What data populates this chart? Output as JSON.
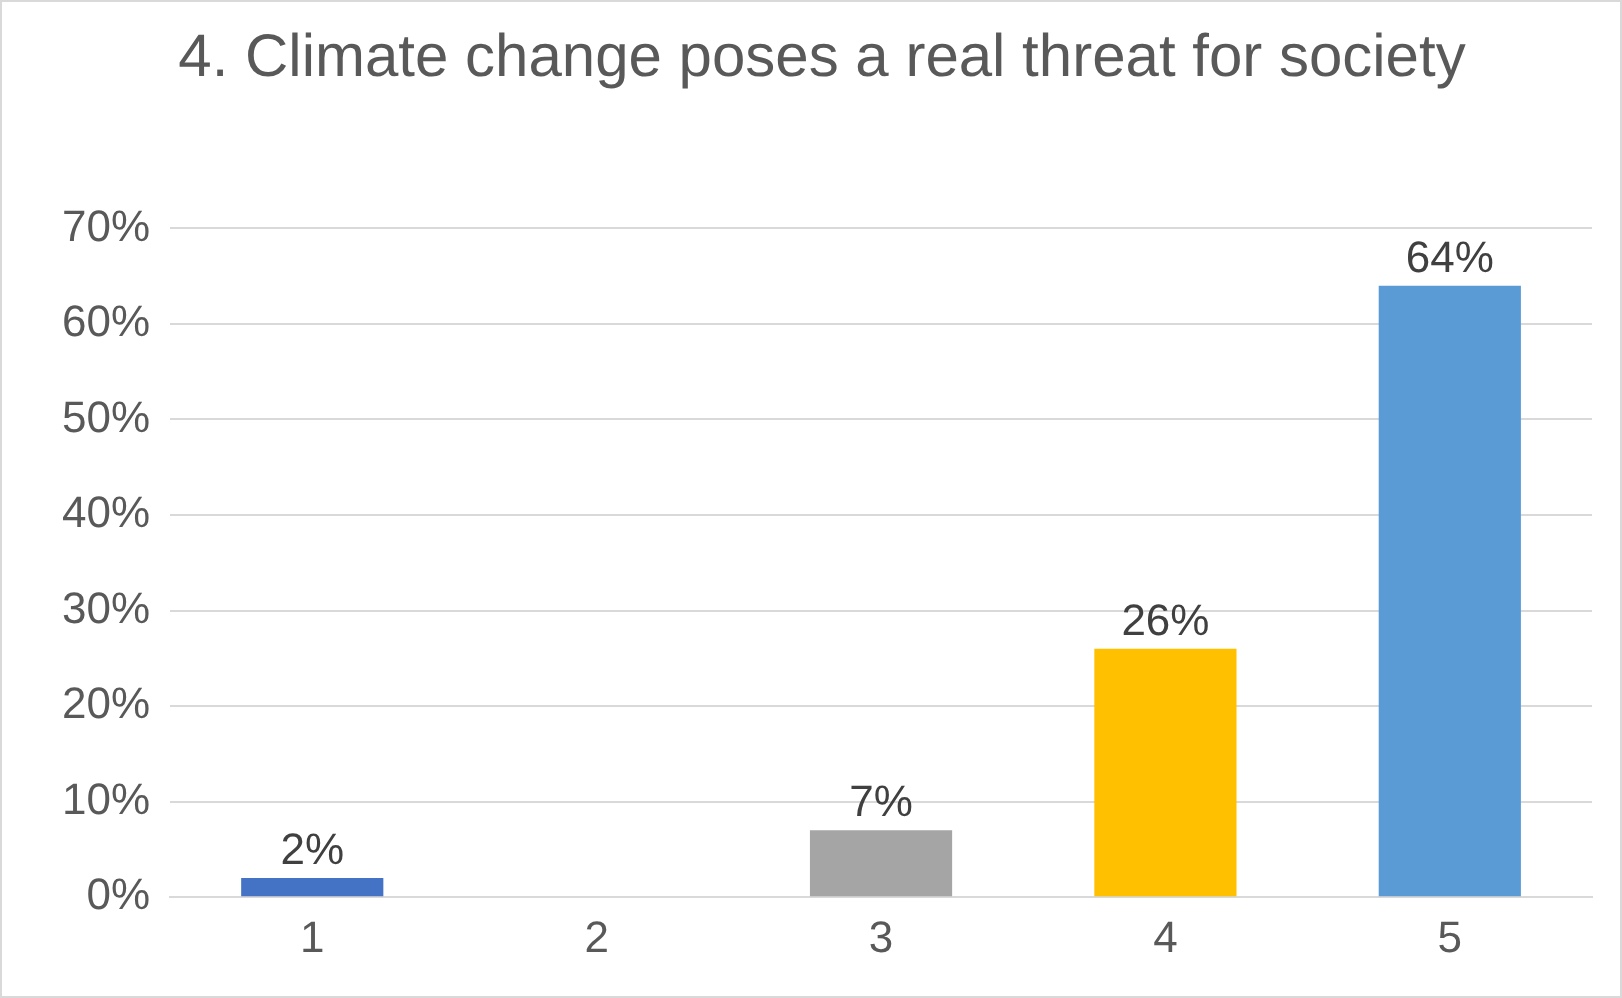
{
  "chart_data": {
    "type": "bar",
    "title": "4. Climate change poses a real threat for society",
    "categories": [
      "1",
      "2",
      "3",
      "4",
      "5"
    ],
    "values": [
      2,
      null,
      7,
      26,
      64
    ],
    "colors": [
      "#4472c4",
      "#a5a5a5",
      "#a5a5a5",
      "#ffc000",
      "#5b9bd5"
    ],
    "value_labels": [
      "2%",
      null,
      "7%",
      "26%",
      "64%"
    ],
    "ylim": [
      0,
      70
    ],
    "yticks": [
      {
        "value": 0,
        "label": "0%"
      },
      {
        "value": 10,
        "label": "10%"
      },
      {
        "value": 20,
        "label": "20%"
      },
      {
        "value": 30,
        "label": "30%"
      },
      {
        "value": 40,
        "label": "40%"
      },
      {
        "value": 50,
        "label": "50%"
      },
      {
        "value": 60,
        "label": "60%"
      },
      {
        "value": 70,
        "label": "70%"
      }
    ],
    "grid": "y",
    "legend": false
  }
}
